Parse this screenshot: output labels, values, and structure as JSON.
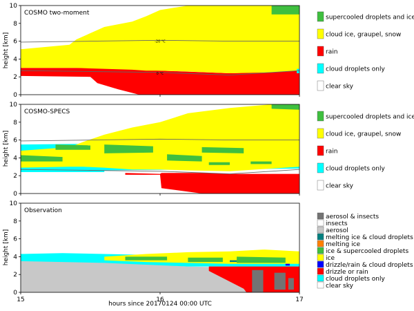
{
  "figure": {
    "xlabel": "hours since 20170124 00:00 UTC",
    "ylabel": "height [km]"
  },
  "chart_data": [
    {
      "type": "heatmap",
      "title": "COSMO two-moment",
      "xlim": [
        15,
        17
      ],
      "ylim": [
        0,
        10
      ],
      "xticks": [
        15,
        16,
        17
      ],
      "yticks": [
        0,
        2,
        4,
        6,
        8,
        10
      ],
      "categories": [
        {
          "name": "supercooled droplets and ice",
          "color": "#3fbf3f"
        },
        {
          "name": "cloud ice, graupel, snow",
          "color": "#ffff00"
        },
        {
          "name": "rain",
          "color": "#ff0000"
        },
        {
          "name": "cloud droplets only",
          "color": "#00ffff"
        },
        {
          "name": "clear sky",
          "color": "#ffffff"
        }
      ],
      "annotations": [
        "-20 °C",
        "0 °C"
      ],
      "isotherms": [
        {
          "label": "-20 °C",
          "x": [
            15.0,
            15.5,
            16.0,
            16.5,
            17.0
          ],
          "y": [
            5.9,
            6.0,
            6.1,
            6.0,
            6.0
          ]
        },
        {
          "label": "0 °C",
          "x": [
            15.0,
            15.5,
            16.0,
            16.5,
            16.8,
            17.0
          ],
          "y": [
            2.7,
            2.6,
            2.5,
            2.2,
            2.5,
            2.7
          ]
        }
      ],
      "layers": [
        {
          "category": "rain",
          "x": [
            15.0,
            15.5,
            15.55,
            15.7,
            15.85,
            16.0,
            16.5,
            16.9,
            17.0
          ],
          "bottom": [
            2.1,
            2.0,
            1.3,
            0.6,
            0.0,
            0.0,
            0.0,
            0.0,
            0.0
          ],
          "top": [
            3.0,
            3.0,
            3.0,
            2.9,
            2.8,
            2.7,
            2.4,
            2.6,
            2.7
          ]
        },
        {
          "category": "cloud ice, graupel, snow",
          "x": [
            15.0,
            15.35,
            15.4,
            15.6,
            15.8,
            15.9,
            16.0,
            16.2,
            16.5,
            16.8,
            17.0
          ],
          "bottom": [
            3.0,
            3.0,
            3.0,
            2.9,
            2.8,
            2.7,
            2.7,
            2.6,
            2.4,
            2.5,
            2.7
          ],
          "top": [
            5.1,
            5.6,
            6.2,
            7.6,
            8.2,
            8.8,
            9.5,
            10.0,
            10.0,
            10.0,
            10.0
          ]
        }
      ],
      "patches": [
        {
          "category": "supercooled droplets and ice",
          "x": [
            16.8,
            17.0
          ],
          "bottom": [
            9.0,
            9.0
          ],
          "top": [
            10.0,
            10.0
          ]
        },
        {
          "category": "cloud droplets only",
          "x": [
            16.98,
            17.0
          ],
          "bottom": [
            2.4,
            2.4
          ],
          "top": [
            2.9,
            2.9
          ]
        }
      ]
    },
    {
      "type": "heatmap",
      "title": "COSMO-SPECS",
      "xlim": [
        15,
        17
      ],
      "ylim": [
        0,
        10
      ],
      "xticks": [
        15,
        16,
        17
      ],
      "yticks": [
        0,
        2,
        4,
        6,
        8,
        10
      ],
      "categories": [
        {
          "name": "supercooled droplets and ice",
          "color": "#3fbf3f"
        },
        {
          "name": "cloud ice, graupel, snow",
          "color": "#ffff00"
        },
        {
          "name": "rain",
          "color": "#ff0000"
        },
        {
          "name": "cloud droplets only",
          "color": "#00ffff"
        },
        {
          "name": "clear sky",
          "color": "#ffffff"
        }
      ],
      "isotherms": [
        {
          "label": "-20 °C",
          "x": [
            15.0,
            15.5,
            16.0,
            16.5,
            17.0
          ],
          "y": [
            5.9,
            6.0,
            6.1,
            6.0,
            6.0
          ]
        },
        {
          "label": "0 °C",
          "x": [
            15.0,
            15.5,
            16.0,
            16.5,
            16.8,
            17.0
          ],
          "y": [
            2.7,
            2.6,
            2.5,
            2.2,
            2.5,
            2.7
          ]
        }
      ],
      "layers": [
        {
          "category": "cloud droplets only",
          "x": [
            15.0,
            15.6,
            15.6,
            17.0
          ],
          "bottom": [
            2.4,
            2.4,
            2.6,
            2.8
          ],
          "top": [
            5.5,
            5.6,
            5.4,
            4.0
          ]
        },
        {
          "category": "cloud ice, graupel, snow",
          "x": [
            15.0,
            15.35,
            15.45,
            15.6,
            15.8,
            16.0,
            16.2,
            16.5,
            16.8,
            17.0
          ],
          "bottom": [
            2.9,
            3.0,
            3.0,
            2.9,
            2.7,
            2.7,
            2.6,
            2.5,
            2.8,
            3.0
          ],
          "top": [
            4.8,
            5.2,
            5.8,
            6.6,
            7.4,
            8.0,
            9.0,
            9.6,
            10.0,
            10.0
          ]
        },
        {
          "category": "rain",
          "x": [
            15.75,
            16.0,
            16.01,
            16.3,
            16.5,
            16.8,
            17.0
          ],
          "bottom": [
            2.1,
            2.1,
            0.6,
            0.0,
            0.0,
            0.0,
            0.0
          ],
          "top": [
            2.3,
            2.2,
            2.3,
            2.3,
            2.2,
            2.2,
            2.2
          ]
        }
      ],
      "patches": [
        {
          "category": "supercooled droplets and ice",
          "x": [
            15.0,
            15.3
          ],
          "bottom": [
            3.6,
            3.6
          ],
          "top": [
            4.3,
            4.1
          ]
        },
        {
          "category": "supercooled droplets and ice",
          "x": [
            15.25,
            15.5
          ],
          "bottom": [
            4.9,
            4.9
          ],
          "top": [
            5.5,
            5.4
          ]
        },
        {
          "category": "supercooled droplets and ice",
          "x": [
            15.6,
            15.95
          ],
          "bottom": [
            4.5,
            4.6
          ],
          "top": [
            5.5,
            5.3
          ]
        },
        {
          "category": "supercooled droplets and ice",
          "x": [
            16.05,
            16.3
          ],
          "bottom": [
            3.7,
            3.6
          ],
          "top": [
            4.4,
            4.2
          ]
        },
        {
          "category": "supercooled droplets and ice",
          "x": [
            16.3,
            16.6
          ],
          "bottom": [
            4.6,
            4.5
          ],
          "top": [
            5.2,
            5.1
          ]
        },
        {
          "category": "supercooled droplets and ice",
          "x": [
            16.35,
            16.5
          ],
          "bottom": [
            3.2,
            3.2
          ],
          "top": [
            3.5,
            3.5
          ]
        },
        {
          "category": "supercooled droplets and ice",
          "x": [
            16.65,
            16.8
          ],
          "bottom": [
            3.3,
            3.3
          ],
          "top": [
            3.6,
            3.6
          ]
        },
        {
          "category": "supercooled droplets and ice",
          "x": [
            16.8,
            17.0
          ],
          "bottom": [
            9.5,
            9.4
          ],
          "top": [
            10.0,
            10.0
          ]
        }
      ]
    },
    {
      "type": "heatmap",
      "title": "Observation",
      "xlim": [
        15,
        17
      ],
      "ylim": [
        0,
        10
      ],
      "xticks": [
        15,
        16,
        17
      ],
      "yticks": [
        0,
        2,
        4,
        6,
        8,
        10
      ],
      "categories": [
        {
          "name": "aerosol & insects",
          "color": "#737373"
        },
        {
          "name": "insects",
          "color": "#ffffff"
        },
        {
          "name": "aerosol",
          "color": "#c8c8c8"
        },
        {
          "name": "melting ice & cloud droplets",
          "color": "#008080"
        },
        {
          "name": "melting ice",
          "color": "#ff8000"
        },
        {
          "name": "ice & supercooled droplets",
          "color": "#3fbf3f"
        },
        {
          "name": "ice",
          "color": "#ffff00"
        },
        {
          "name": "drizzle/rain & cloud droplets",
          "color": "#0000ff"
        },
        {
          "name": "drizzle or rain",
          "color": "#ff0000"
        },
        {
          "name": "cloud droplets only",
          "color": "#00ffff"
        },
        {
          "name": "clear sky",
          "color": "#ffffff"
        }
      ],
      "layers": [
        {
          "category": "aerosol",
          "x": [
            15.0,
            15.5,
            15.8,
            16.0,
            16.2,
            16.5,
            16.75,
            17.0
          ],
          "bottom": [
            0.0,
            0.0,
            0.0,
            0.0,
            0.0,
            0.0,
            0.0,
            0.0
          ],
          "top": [
            3.6,
            3.5,
            3.3,
            3.1,
            2.9,
            2.8,
            2.8,
            2.7
          ]
        },
        {
          "category": "cloud droplets only",
          "x": [
            15.0,
            15.3,
            15.6,
            15.9,
            16.2,
            16.5,
            16.75,
            17.0
          ],
          "bottom": [
            3.5,
            3.4,
            3.3,
            3.1,
            2.9,
            2.9,
            2.8,
            2.9
          ],
          "top": [
            4.3,
            4.4,
            4.3,
            4.2,
            4.0,
            4.0,
            4.1,
            4.0
          ]
        },
        {
          "category": "ice",
          "x": [
            15.6,
            15.9,
            16.2,
            16.5,
            16.75,
            17.0
          ],
          "bottom": [
            3.6,
            3.4,
            3.3,
            3.2,
            3.2,
            3.2
          ],
          "top": [
            4.0,
            4.3,
            4.5,
            4.6,
            4.8,
            4.6
          ]
        },
        {
          "category": "drizzle or rain",
          "x": [
            16.35,
            16.6,
            16.62,
            16.8,
            17.0
          ],
          "bottom": [
            2.4,
            0.4,
            0.0,
            0.0,
            0.0
          ],
          "top": [
            2.9,
            2.9,
            2.9,
            2.9,
            2.9
          ]
        }
      ],
      "patches": [
        {
          "category": "ice & supercooled droplets",
          "x": [
            15.75,
            16.05
          ],
          "bottom": [
            3.6,
            3.6
          ],
          "top": [
            4.0,
            4.0
          ]
        },
        {
          "category": "ice & supercooled droplets",
          "x": [
            16.2,
            16.45
          ],
          "bottom": [
            3.4,
            3.4
          ],
          "top": [
            3.9,
            3.9
          ]
        },
        {
          "category": "ice & supercooled droplets",
          "x": [
            16.55,
            16.9
          ],
          "bottom": [
            3.3,
            3.3
          ],
          "top": [
            4.0,
            3.9
          ]
        },
        {
          "category": "aerosol & insects",
          "x": [
            16.66,
            16.74
          ],
          "bottom": [
            0.0,
            0.0
          ],
          "top": [
            2.5,
            2.5
          ]
        },
        {
          "category": "aerosol & insects",
          "x": [
            16.82,
            16.9
          ],
          "bottom": [
            0.3,
            0.3
          ],
          "top": [
            2.2,
            2.2
          ]
        },
        {
          "category": "aerosol & insects",
          "x": [
            16.92,
            16.96
          ],
          "bottom": [
            0.3,
            0.3
          ],
          "top": [
            1.6,
            1.6
          ]
        },
        {
          "category": "drizzle/rain & cloud droplets",
          "x": [
            16.9,
            16.93
          ],
          "bottom": [
            3.0,
            3.0
          ],
          "top": [
            3.2,
            3.2
          ]
        },
        {
          "category": "melting ice & cloud droplets",
          "x": [
            16.5,
            16.55
          ],
          "bottom": [
            3.4,
            3.4
          ],
          "top": [
            3.6,
            3.6
          ]
        }
      ]
    }
  ]
}
